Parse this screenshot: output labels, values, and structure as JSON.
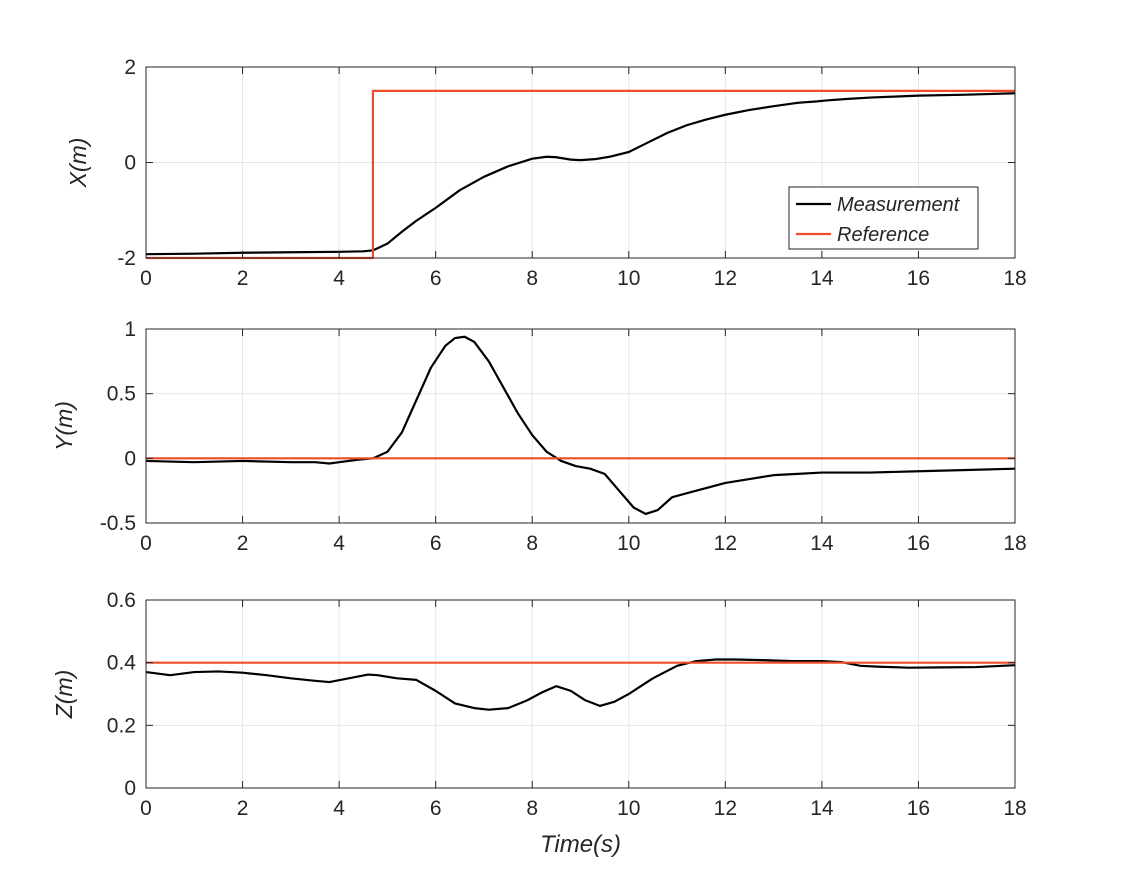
{
  "colors": {
    "measurement": "#000000",
    "reference": "#ee4b2b",
    "grid": "#e6e6e6",
    "axis": "#262626"
  },
  "chart_data": [
    {
      "type": "line",
      "ylabel": "X(m)",
      "xlabel": "",
      "xlim": [
        0,
        18
      ],
      "ylim": [
        -2,
        2
      ],
      "xticks": [
        "0",
        "2",
        "4",
        "6",
        "8",
        "10",
        "12",
        "14",
        "16",
        "18"
      ],
      "yticks": [
        "-2",
        "0",
        "2"
      ],
      "grid": true,
      "legend": {
        "position": "bottom-right",
        "entries": [
          "Measurement",
          "Reference"
        ]
      },
      "series": [
        {
          "name": "Measurement",
          "color": "#000000",
          "x": [
            0,
            1,
            2,
            3,
            4,
            4.5,
            4.7,
            5.0,
            5.3,
            5.6,
            6.0,
            6.5,
            7.0,
            7.5,
            8.0,
            8.3,
            8.5,
            8.8,
            9.0,
            9.3,
            9.6,
            10.0,
            10.4,
            10.8,
            11.2,
            11.6,
            12.0,
            12.5,
            13.0,
            13.5,
            13.9,
            14.1,
            14.5,
            15.0,
            15.5,
            16,
            17,
            18
          ],
          "y": [
            -1.92,
            -1.91,
            -1.89,
            -1.88,
            -1.87,
            -1.86,
            -1.84,
            -1.7,
            -1.45,
            -1.22,
            -0.95,
            -0.58,
            -0.3,
            -0.08,
            0.08,
            0.12,
            0.11,
            0.06,
            0.05,
            0.07,
            0.12,
            0.22,
            0.42,
            0.62,
            0.78,
            0.9,
            1.0,
            1.1,
            1.18,
            1.25,
            1.28,
            1.3,
            1.33,
            1.36,
            1.38,
            1.4,
            1.42,
            1.45
          ]
        },
        {
          "name": "Reference",
          "color": "#ee4b2b",
          "x": [
            0,
            4.7,
            4.7,
            18
          ],
          "y": [
            -2,
            -2,
            1.5,
            1.5
          ]
        }
      ]
    },
    {
      "type": "line",
      "ylabel": "Y(m)",
      "xlabel": "",
      "xlim": [
        0,
        18
      ],
      "ylim": [
        -0.5,
        1
      ],
      "xticks": [
        "0",
        "2",
        "4",
        "6",
        "8",
        "10",
        "12",
        "14",
        "16",
        "18"
      ],
      "yticks": [
        "-0.5",
        "0",
        "0.5",
        "1"
      ],
      "grid": true,
      "series": [
        {
          "name": "Measurement",
          "color": "#000000",
          "x": [
            0,
            1,
            2,
            3,
            3.5,
            3.8,
            4.0,
            4.4,
            4.7,
            5.0,
            5.3,
            5.6,
            5.9,
            6.2,
            6.4,
            6.6,
            6.8,
            7.1,
            7.4,
            7.7,
            8.0,
            8.3,
            8.6,
            8.9,
            9.2,
            9.5,
            9.8,
            10.1,
            10.35,
            10.6,
            10.9,
            11.3,
            11.7,
            12.0,
            12.5,
            13.0,
            13.5,
            14.0,
            15,
            16,
            17,
            18
          ],
          "y": [
            -0.02,
            -0.03,
            -0.02,
            -0.03,
            -0.03,
            -0.04,
            -0.03,
            -0.01,
            0.0,
            0.05,
            0.2,
            0.45,
            0.7,
            0.87,
            0.93,
            0.94,
            0.9,
            0.75,
            0.55,
            0.35,
            0.18,
            0.05,
            -0.02,
            -0.06,
            -0.08,
            -0.12,
            -0.25,
            -0.38,
            -0.43,
            -0.4,
            -0.3,
            -0.26,
            -0.22,
            -0.19,
            -0.16,
            -0.13,
            -0.12,
            -0.11,
            -0.11,
            -0.1,
            -0.09,
            -0.08
          ]
        },
        {
          "name": "Reference",
          "color": "#ee4b2b",
          "x": [
            0,
            18
          ],
          "y": [
            0,
            0
          ]
        }
      ]
    },
    {
      "type": "line",
      "ylabel": "Z(m)",
      "xlabel": "Time(s)",
      "xlim": [
        0,
        18
      ],
      "ylim": [
        0,
        0.6
      ],
      "xticks": [
        "0",
        "2",
        "4",
        "6",
        "8",
        "10",
        "12",
        "14",
        "16",
        "18"
      ],
      "yticks": [
        "0",
        "0.2",
        "0.4",
        "0.6"
      ],
      "grid": true,
      "series": [
        {
          "name": "Measurement",
          "color": "#000000",
          "x": [
            0,
            0.5,
            1.0,
            1.5,
            2.0,
            2.5,
            3.0,
            3.5,
            3.8,
            4.2,
            4.6,
            4.8,
            5.2,
            5.6,
            6.0,
            6.4,
            6.8,
            7.1,
            7.5,
            7.9,
            8.2,
            8.5,
            8.8,
            9.1,
            9.4,
            9.7,
            10.0,
            10.5,
            11.0,
            11.4,
            11.8,
            12.2,
            12.8,
            13.4,
            14.0,
            14.4,
            14.8,
            15.2,
            15.8,
            16.5,
            17.2,
            18
          ],
          "y": [
            0.37,
            0.36,
            0.37,
            0.372,
            0.368,
            0.36,
            0.35,
            0.342,
            0.338,
            0.35,
            0.362,
            0.36,
            0.35,
            0.345,
            0.31,
            0.27,
            0.255,
            0.25,
            0.255,
            0.28,
            0.305,
            0.325,
            0.31,
            0.28,
            0.262,
            0.275,
            0.3,
            0.35,
            0.39,
            0.405,
            0.41,
            0.41,
            0.408,
            0.405,
            0.405,
            0.402,
            0.39,
            0.387,
            0.384,
            0.385,
            0.386,
            0.392
          ]
        },
        {
          "name": "Reference",
          "color": "#ee4b2b",
          "x": [
            0,
            18
          ],
          "y": [
            0.4,
            0.4
          ]
        }
      ]
    }
  ]
}
